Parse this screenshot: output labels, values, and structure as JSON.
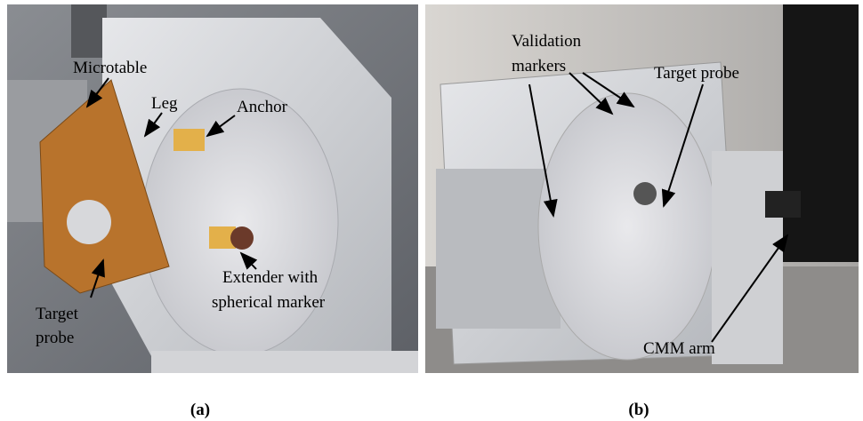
{
  "panels": [
    {
      "caption": "(a)",
      "labels": [
        {
          "lines": [
            "Microtable"
          ]
        },
        {
          "lines": [
            "Leg"
          ]
        },
        {
          "lines": [
            "Anchor"
          ]
        },
        {
          "lines": [
            "Extender with",
            "spherical marker"
          ]
        },
        {
          "lines": [
            "Target",
            "probe"
          ]
        }
      ]
    },
    {
      "caption": "(b)",
      "labels": [
        {
          "lines": [
            "Validation",
            "markers"
          ]
        },
        {
          "lines": [
            "Target probe"
          ]
        },
        {
          "lines": [
            "CMM arm"
          ]
        }
      ]
    }
  ]
}
